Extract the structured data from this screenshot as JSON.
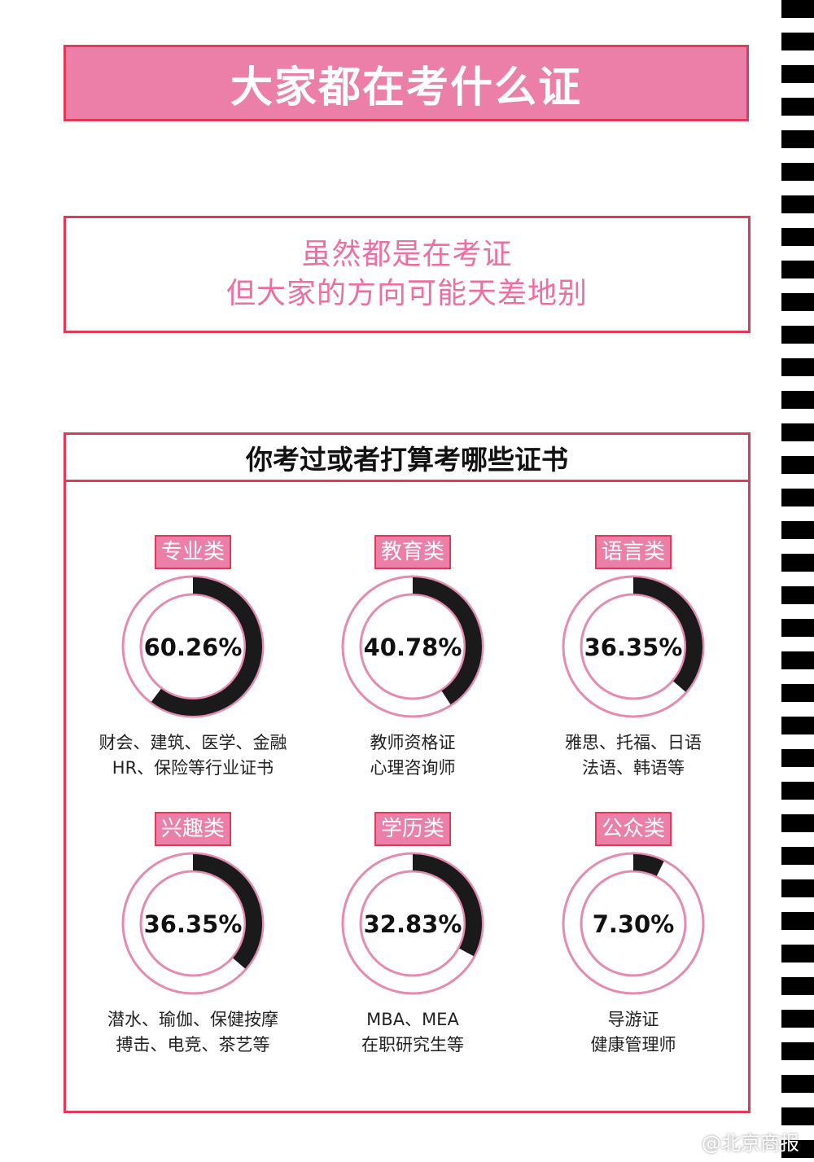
{
  "header": {
    "title": "大家都在考什么证"
  },
  "subtitle": {
    "line1": "虽然都是在考证",
    "line2": "但大家的方向可能天差地别"
  },
  "panel": {
    "question": "你考过或者打算考哪些证书"
  },
  "colors": {
    "accent_pink": "#ec7fa8",
    "border_red": "#e03a58",
    "subtitle_pink": "#ec6fa4",
    "ring": "#e58ab0",
    "arc": "#1a1a1a"
  },
  "watermark": "@北京商报",
  "chart_data": {
    "type": "donut",
    "categories": [
      "专业类",
      "教育类",
      "语言类",
      "兴趣类",
      "学历类",
      "公众类"
    ],
    "values": [
      60.26,
      40.78,
      36.35,
      36.35,
      32.83,
      7.3
    ],
    "value_labels": [
      "60.26%",
      "40.78%",
      "36.35%",
      "36.35%",
      "32.83%",
      "7.30%"
    ],
    "descriptions": [
      [
        "财会、建筑、医学、金融",
        "HR、保险等行业证书"
      ],
      [
        "教师资格证",
        "心理咨询师"
      ],
      [
        "雅思、托福、日语",
        "法语、韩语等"
      ],
      [
        "潜水、瑜伽、保健按摩",
        "搏击、电竞、茶艺等"
      ],
      [
        "MBA、MEA",
        "在职研究生等"
      ],
      [
        "导游证",
        "健康管理师"
      ]
    ]
  }
}
